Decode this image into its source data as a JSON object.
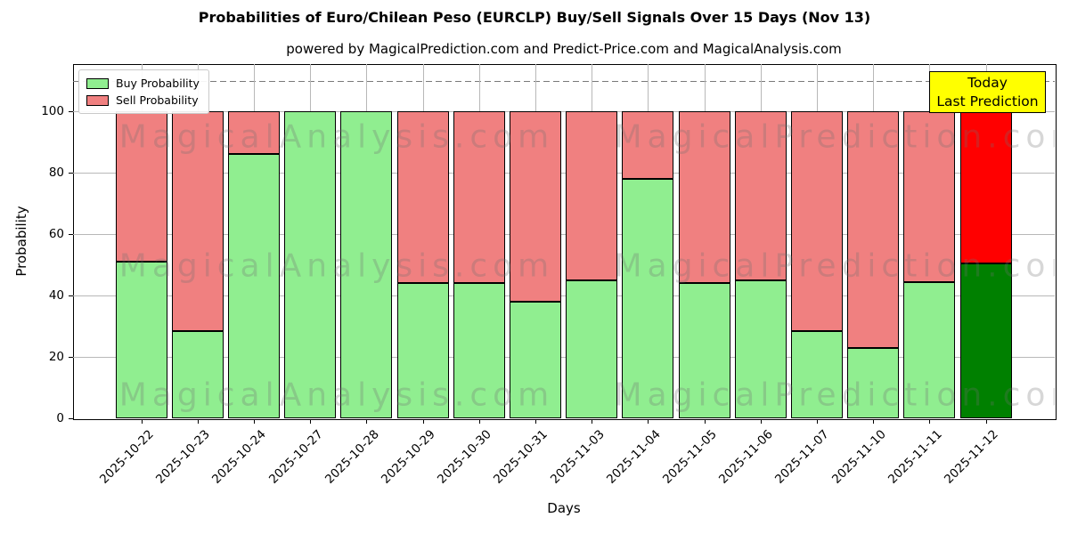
{
  "title": "Probabilities of Euro/Chilean Peso (EURCLP) Buy/Sell Signals Over 15 Days (Nov 13)",
  "subtitle": "powered by MagicalPrediction.com and Predict-Price.com and MagicalAnalysis.com",
  "x_axis_label": "Days",
  "y_axis_label": "Probability",
  "legend": {
    "buy_label": "Buy Probability",
    "sell_label": "Sell Probability"
  },
  "annotation": {
    "line1": "Today",
    "line2": "Last Prediction",
    "bg_color": "#ffff00"
  },
  "watermarks": {
    "left_text": "MagicalAnalysis.com",
    "right_text": "MagicalPrediction.com"
  },
  "colors": {
    "buy": "#90ee90",
    "sell": "#f08080",
    "today_buy": "#008000",
    "today_sell": "#ff0000",
    "bar_edge": "#000000",
    "grid": "#b8b8b8",
    "dashed_line": "#7a7a7a",
    "annotation_bg": "#ffff00"
  },
  "chart_data": {
    "type": "bar",
    "stacked": true,
    "title": "Probabilities of Euro/Chilean Peso (EURCLP) Buy/Sell Signals Over 15 Days (Nov 13)",
    "xlabel": "Days",
    "ylabel": "Probability",
    "ylim": [
      0,
      115.4
    ],
    "y_ticks": [
      0,
      20,
      40,
      60,
      80,
      100
    ],
    "dashed_threshold_y": 110,
    "grid": true,
    "legend_position": "upper left",
    "categories": [
      "2025-10-22",
      "2025-10-23",
      "2025-10-24",
      "2025-10-27",
      "2025-10-28",
      "2025-10-29",
      "2025-10-30",
      "2025-10-31",
      "2025-11-03",
      "2025-11-04",
      "2025-11-05",
      "2025-11-06",
      "2025-11-07",
      "2025-11-10",
      "2025-11-11",
      "2025-11-12"
    ],
    "series": [
      {
        "name": "Buy Probability",
        "values": [
          51,
          28.5,
          86,
          100,
          100,
          44,
          44,
          38,
          45,
          78,
          44,
          45,
          28.5,
          23,
          44.5,
          50.5
        ]
      },
      {
        "name": "Sell Probability",
        "values": [
          49,
          71.5,
          14,
          0,
          0,
          56,
          56,
          62,
          55,
          22,
          56,
          55,
          71.5,
          77,
          55.5,
          49.5
        ]
      }
    ],
    "today_index": 15
  }
}
